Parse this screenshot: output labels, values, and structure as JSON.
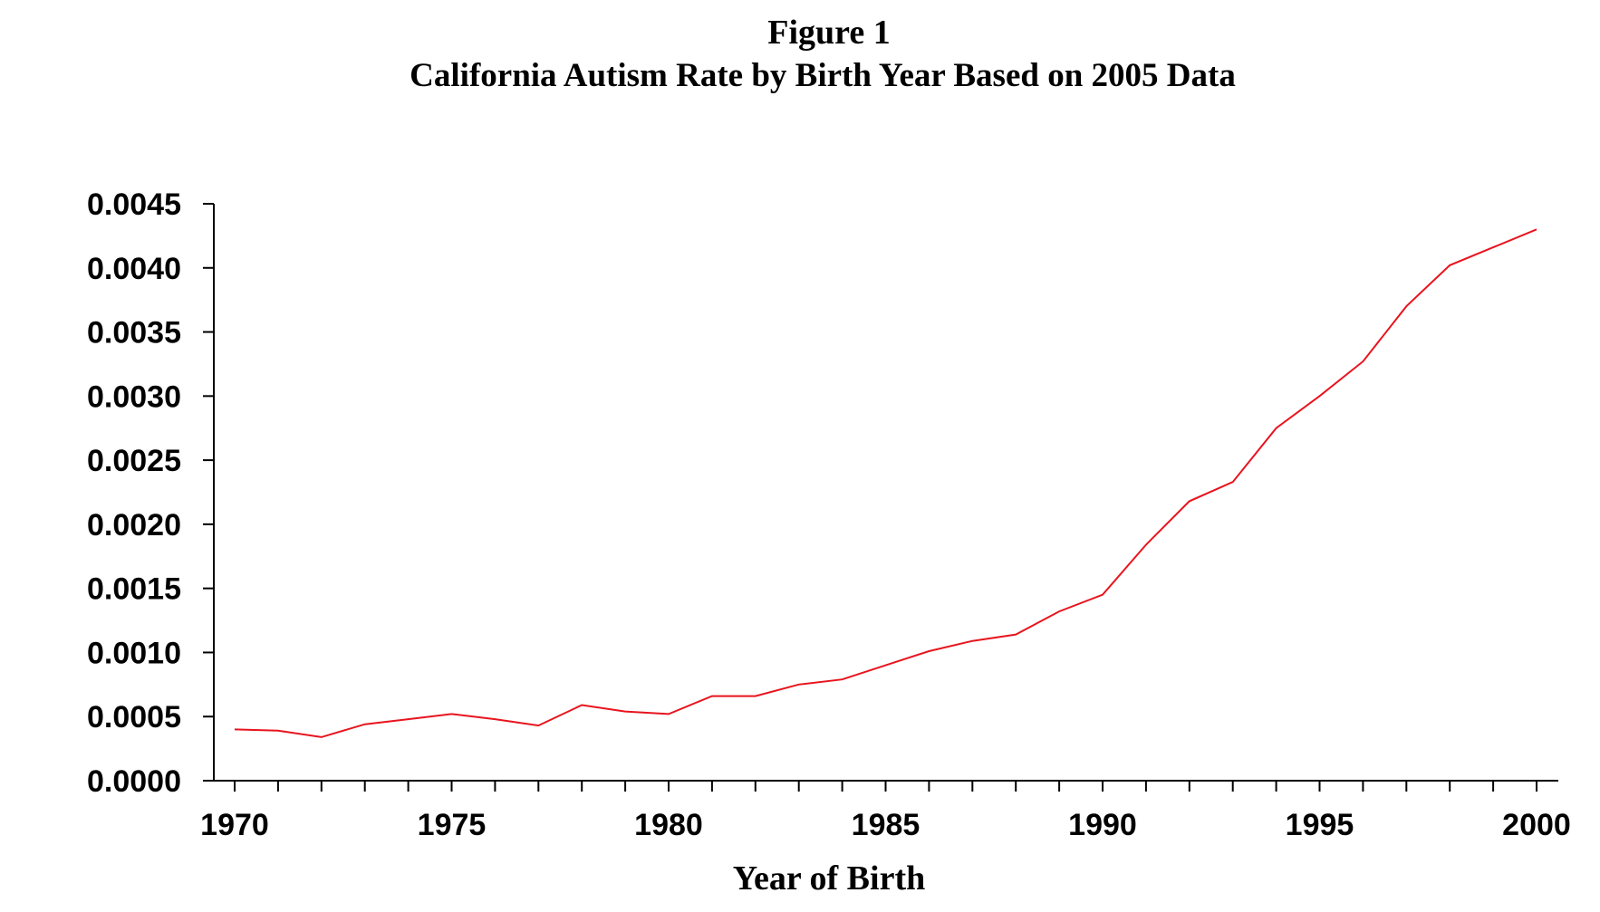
{
  "chart_data": {
    "type": "line",
    "figure_label": "Figure 1",
    "title": "California Autism Rate by Birth Year Based on 2005 Data",
    "xlabel": "Year of Birth",
    "ylabel": "",
    "xlim": [
      1970,
      2000
    ],
    "ylim": [
      0,
      0.0045
    ],
    "x_ticks_labeled": [
      "1970",
      "1975",
      "1980",
      "1985",
      "1990",
      "1995",
      "2000"
    ],
    "y_ticks": [
      "0.0000",
      "0.0005",
      "0.0010",
      "0.0015",
      "0.0020",
      "0.0025",
      "0.0030",
      "0.0035",
      "0.0040",
      "0.0045"
    ],
    "grid": false,
    "legend": "none",
    "series": [
      {
        "color": "#e8141e",
        "x": [
          1970,
          1971,
          1972,
          1973,
          1974,
          1975,
          1976,
          1977,
          1978,
          1979,
          1980,
          1981,
          1982,
          1983,
          1984,
          1985,
          1986,
          1987,
          1988,
          1989,
          1990,
          1991,
          1992,
          1993,
          1994,
          1995,
          1996,
          1997,
          1998,
          1999,
          2000
        ],
        "values": [
          0.0004,
          0.00039,
          0.00034,
          0.00044,
          0.00048,
          0.00052,
          0.00048,
          0.00043,
          0.00059,
          0.00054,
          0.00052,
          0.00066,
          0.00066,
          0.00075,
          0.00079,
          0.0009,
          0.00101,
          0.00109,
          0.00114,
          0.00132,
          0.00145,
          0.00184,
          0.00218,
          0.00233,
          0.00275,
          0.003,
          0.00327,
          0.0037,
          0.00402,
          0.00416,
          0.0043
        ]
      }
    ]
  }
}
